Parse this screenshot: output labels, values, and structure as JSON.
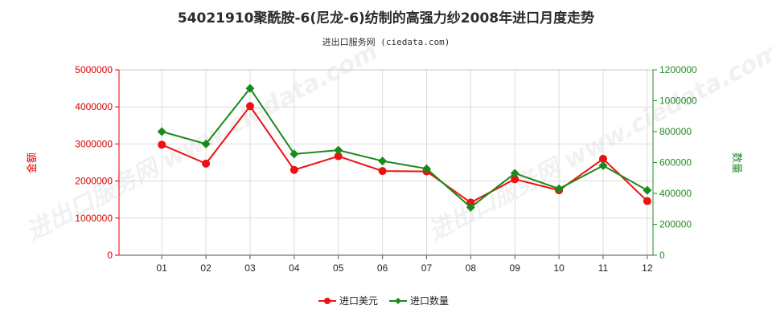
{
  "chart_data": {
    "type": "line",
    "title": "54021910聚酰胺-6(尼龙-6)纺制的高强力纱2008年进口月度走势",
    "subtitle": "进出口服务网 (ciedata.com)",
    "watermark": "进出口服务网 www.ciedata.com",
    "categories": [
      "01",
      "02",
      "03",
      "04",
      "05",
      "06",
      "07",
      "08",
      "09",
      "10",
      "11",
      "12"
    ],
    "left_axis": {
      "label": "金额",
      "ylim": [
        0,
        5000000
      ],
      "ticks": [
        "0",
        "1000000",
        "2000000",
        "3000000",
        "4000000",
        "5000000"
      ],
      "color": "#dd0000"
    },
    "right_axis": {
      "label": "数量",
      "ylim": [
        0,
        1200000
      ],
      "ticks": [
        "0",
        "200000",
        "400000",
        "600000",
        "800000",
        "1000000",
        "1200000"
      ],
      "color": "#228b22"
    },
    "series": [
      {
        "name": "进口美元",
        "axis": "left",
        "color": "#ee1111",
        "marker": "circle",
        "values": [
          2980000,
          2470000,
          4020000,
          2300000,
          2670000,
          2270000,
          2260000,
          1420000,
          2050000,
          1750000,
          2600000,
          1460000
        ]
      },
      {
        "name": "进口数量",
        "axis": "right",
        "color": "#1a8a1a",
        "marker": "diamond",
        "values": [
          800000,
          720000,
          1080000,
          655000,
          680000,
          610000,
          560000,
          310000,
          530000,
          430000,
          580000,
          420000
        ]
      }
    ],
    "grid": true,
    "legend": "bottom-center"
  }
}
